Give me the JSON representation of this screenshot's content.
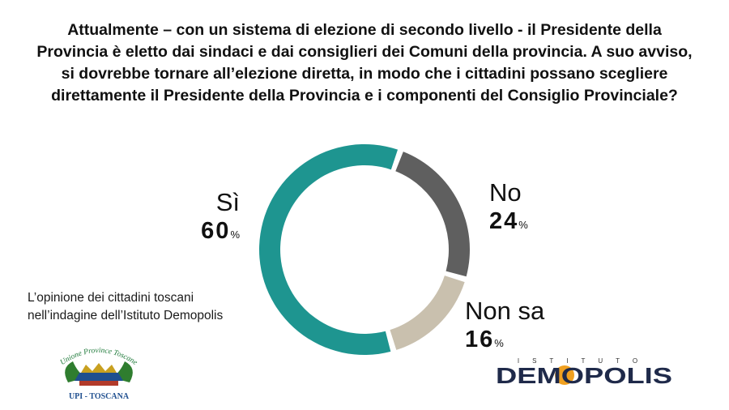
{
  "question_lines": [
    "Attualmente – con un sistema di elezione di secondo livello - il Presidente della",
    "Provincia è eletto dai sindaci e dai consiglieri dei Comuni della provincia. A suo avviso,",
    "si dovrebbe tornare all’elezione diretta, in modo che i cittadini possano scegliere",
    "direttamente il Presidente della Provincia e i componenti del Consiglio Provinciale?"
  ],
  "chart_data": {
    "type": "pie",
    "style": "donut",
    "categories": [
      "Sì",
      "No",
      "Non sa"
    ],
    "values": [
      60,
      24,
      16
    ],
    "unit": "%",
    "colors": [
      "#1e9590",
      "#5f5f5f",
      "#c9c0ae"
    ]
  },
  "labels": {
    "si": {
      "name": "Sì",
      "value": "60",
      "pct": "%"
    },
    "no": {
      "name": "No",
      "value": "24",
      "pct": "%"
    },
    "non_sa": {
      "name": "Non sa",
      "value": "16",
      "pct": "%"
    }
  },
  "caption_lines": [
    "L’opinione dei cittadini toscani",
    "nell’indagine dell’Istituto Demopolis"
  ],
  "upi_logo": {
    "top_text": "Unione Province Toscane",
    "bottom_text": "UPI - TOSCANA"
  },
  "demopolis_logo": {
    "top_text": "ISTITUTO",
    "main_text": "DEMOPOLIS"
  }
}
